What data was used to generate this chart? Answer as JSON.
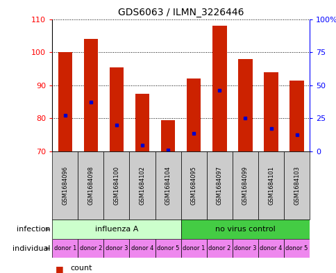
{
  "title": "GDS6063 / ILMN_3226446",
  "samples": [
    "GSM1684096",
    "GSM1684098",
    "GSM1684100",
    "GSM1684102",
    "GSM1684104",
    "GSM1684095",
    "GSM1684097",
    "GSM1684099",
    "GSM1684101",
    "GSM1684103"
  ],
  "bar_heights": [
    100,
    104,
    95.5,
    87.5,
    79.5,
    92,
    108,
    98,
    94,
    91.5
  ],
  "blue_dot_values": [
    81,
    85,
    78,
    72,
    70.5,
    75.5,
    88.5,
    80,
    77,
    75
  ],
  "ylim": [
    70,
    110
  ],
  "yticks_left": [
    70,
    80,
    90,
    100,
    110
  ],
  "right_axis_label_positions": [
    70,
    80,
    90,
    100,
    110
  ],
  "right_axis_labels": [
    "0",
    "25",
    "50",
    "75",
    "100%"
  ],
  "infection_groups": [
    {
      "label": "influenza A",
      "start": 0,
      "end": 5,
      "color": "#ccffcc"
    },
    {
      "label": "no virus control",
      "start": 5,
      "end": 10,
      "color": "#44cc44"
    }
  ],
  "individual_labels": [
    "donor 1",
    "donor 2",
    "donor 3",
    "donor 4",
    "donor 5",
    "donor 1",
    "donor 2",
    "donor 3",
    "donor 4",
    "donor 5"
  ],
  "individual_color": "#ee88ee",
  "tick_box_color": "#cccccc",
  "bar_color": "#cc2200",
  "blue_color": "#0000cc",
  "bar_width": 0.55,
  "bar_bottom": 70,
  "n_samples": 10
}
